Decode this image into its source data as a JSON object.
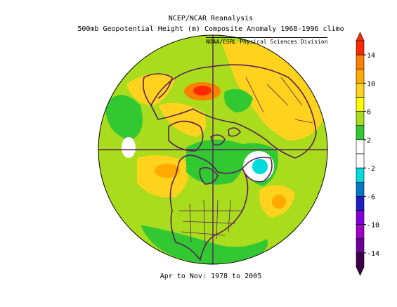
{
  "title_line1": "NCEP/NCAR Reanalysis",
  "title_line2": "500mb Geopotential Height (m) Composite Anomaly 1968-1996 climo",
  "credit": "NOAA/ESRL Physical Sciences Division",
  "caption": "Apr to Nov: 1978 to 2005",
  "colorbar": {
    "tick_labels": [
      "14",
      "10",
      "6",
      "2",
      "-2",
      "-6",
      "-10",
      "-14"
    ],
    "tick_values": [
      14,
      10,
      6,
      2,
      -2,
      -6,
      -10,
      -14
    ],
    "bins": [
      {
        "from": 14,
        "to": 16,
        "color": "#ff2a00"
      },
      {
        "from": 12,
        "to": 14,
        "color": "#ff8000"
      },
      {
        "from": 10,
        "to": 12,
        "color": "#ffaa00"
      },
      {
        "from": 8,
        "to": 10,
        "color": "#ffd21e"
      },
      {
        "from": 6,
        "to": 8,
        "color": "#ffff00"
      },
      {
        "from": 4,
        "to": 6,
        "color": "#aadc1e"
      },
      {
        "from": 2,
        "to": 4,
        "color": "#32c832"
      },
      {
        "from": 0,
        "to": 2,
        "color": "#ffffff"
      },
      {
        "from": -2,
        "to": 0,
        "color": "#ffffff"
      },
      {
        "from": -4,
        "to": -2,
        "color": "#00dcdc"
      },
      {
        "from": -6,
        "to": -4,
        "color": "#0078c8"
      },
      {
        "from": -8,
        "to": -6,
        "color": "#1e1ec8"
      },
      {
        "from": -10,
        "to": -8,
        "color": "#8200dc"
      },
      {
        "from": -12,
        "to": -10,
        "color": "#a000c8"
      },
      {
        "from": -14,
        "to": -12,
        "color": "#6e0096"
      },
      {
        "from": -16,
        "to": -14,
        "color": "#3c004b"
      }
    ]
  },
  "map": {
    "projection": "north polar stereographic",
    "background_color": "#aadc1e",
    "coastline_color": "#5a1e5a"
  }
}
